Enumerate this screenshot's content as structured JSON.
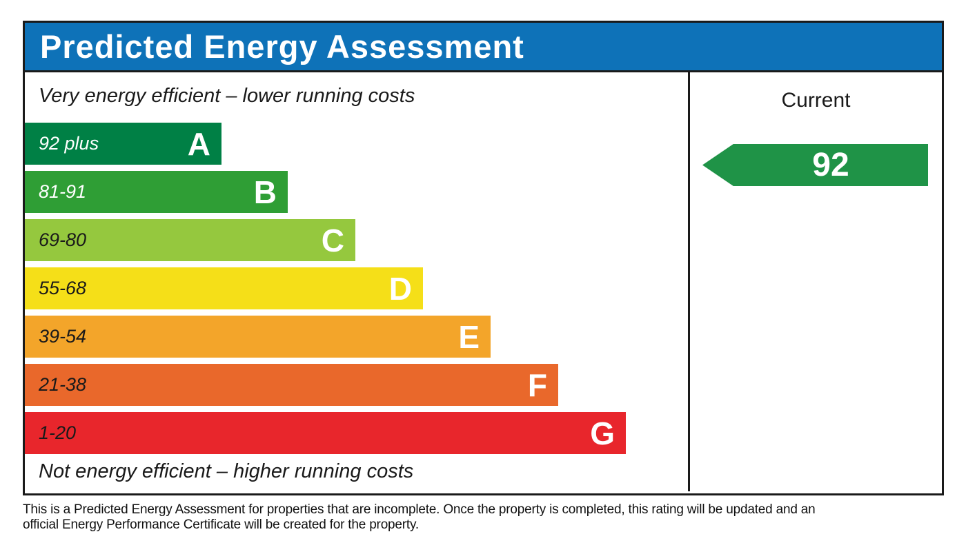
{
  "header": {
    "title": "Predicted Energy Assessment",
    "background": "#0e72b8",
    "text_color": "#ffffff"
  },
  "chart_data": {
    "type": "bar",
    "title": "Predicted Energy Assessment",
    "top_caption": "Very energy efficient – lower running costs",
    "bottom_caption": "Not energy efficient – higher running costs",
    "column_header": "Current",
    "bands": [
      {
        "letter": "A",
        "range": "92 plus",
        "color": "#008045",
        "label_color": "#ffffff",
        "width_px": "285px"
      },
      {
        "letter": "B",
        "range": "81-91",
        "color": "#2f9e35",
        "label_color": "#ffffff",
        "width_px": "381px"
      },
      {
        "letter": "C",
        "range": "69-80",
        "color": "#95c83e",
        "label_color": "#1a1a1a",
        "width_px": "479px"
      },
      {
        "letter": "D",
        "range": "55-68",
        "color": "#f5df18",
        "label_color": "#1a1a1a",
        "width_px": "577px"
      },
      {
        "letter": "E",
        "range": "39-54",
        "color": "#f3a52a",
        "label_color": "#1a1a1a",
        "width_px": "675px"
      },
      {
        "letter": "F",
        "range": "21-38",
        "color": "#e9682b",
        "label_color": "#1a1a1a",
        "width_px": "773px"
      },
      {
        "letter": "G",
        "range": "1-20",
        "color": "#e8262c",
        "label_color": "#1a1a1a",
        "width_px": "871px"
      }
    ],
    "current": {
      "value": 92,
      "band": "A",
      "arrow_color": "#1f9347"
    }
  },
  "footer": {
    "line1": "This is a Predicted Energy Assessment for properties that are incomplete. Once the property is completed, this rating will be updated and an",
    "line2": "official Energy Performance Certificate will be created for the property."
  }
}
